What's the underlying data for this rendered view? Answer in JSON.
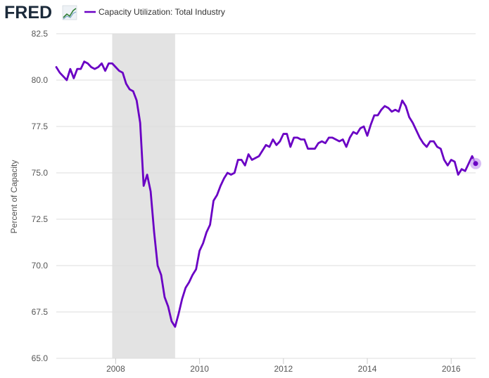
{
  "header": {
    "brand": "FRED",
    "logo_icon": "fred-graph-icon"
  },
  "chart_data": {
    "type": "line",
    "title": "",
    "xlabel": "",
    "ylabel": "Percent of Capacity",
    "legend": {
      "position": "top-left",
      "entries": [
        "Capacity Utilization: Total Industry"
      ]
    },
    "ylim": [
      65.0,
      82.5
    ],
    "xlim": [
      "2006-08",
      "2016-08"
    ],
    "y_ticks": [
      "65.0",
      "67.5",
      "70.0",
      "72.5",
      "75.0",
      "77.5",
      "80.0",
      "82.5"
    ],
    "x_ticks": [
      "2008",
      "2010",
      "2012",
      "2014",
      "2016"
    ],
    "grid": "horizontal",
    "colors": {
      "series": "#6a00c4",
      "recession_band": "#e3e3e3",
      "grid": "#dddddd",
      "last_point_halo": "#c9a6f0"
    },
    "recession": {
      "start": "2007-12",
      "end": "2009-06"
    },
    "series": [
      {
        "name": "Capacity Utilization: Total Industry",
        "x": [
          "2006-08",
          "2006-09",
          "2006-10",
          "2006-11",
          "2006-12",
          "2007-01",
          "2007-02",
          "2007-03",
          "2007-04",
          "2007-05",
          "2007-06",
          "2007-07",
          "2007-08",
          "2007-09",
          "2007-10",
          "2007-11",
          "2007-12",
          "2008-01",
          "2008-02",
          "2008-03",
          "2008-04",
          "2008-05",
          "2008-06",
          "2008-07",
          "2008-08",
          "2008-09",
          "2008-10",
          "2008-11",
          "2008-12",
          "2009-01",
          "2009-02",
          "2009-03",
          "2009-04",
          "2009-05",
          "2009-06",
          "2009-07",
          "2009-08",
          "2009-09",
          "2009-10",
          "2009-11",
          "2009-12",
          "2010-01",
          "2010-02",
          "2010-03",
          "2010-04",
          "2010-05",
          "2010-06",
          "2010-07",
          "2010-08",
          "2010-09",
          "2010-10",
          "2010-11",
          "2010-12",
          "2011-01",
          "2011-02",
          "2011-03",
          "2011-04",
          "2011-05",
          "2011-06",
          "2011-07",
          "2011-08",
          "2011-09",
          "2011-10",
          "2011-11",
          "2011-12",
          "2012-01",
          "2012-02",
          "2012-03",
          "2012-04",
          "2012-05",
          "2012-06",
          "2012-07",
          "2012-08",
          "2012-09",
          "2012-10",
          "2012-11",
          "2012-12",
          "2013-01",
          "2013-02",
          "2013-03",
          "2013-04",
          "2013-05",
          "2013-06",
          "2013-07",
          "2013-08",
          "2013-09",
          "2013-10",
          "2013-11",
          "2013-12",
          "2014-01",
          "2014-02",
          "2014-03",
          "2014-04",
          "2014-05",
          "2014-06",
          "2014-07",
          "2014-08",
          "2014-09",
          "2014-10",
          "2014-11",
          "2014-12",
          "2015-01",
          "2015-02",
          "2015-03",
          "2015-04",
          "2015-05",
          "2015-06",
          "2015-07",
          "2015-08",
          "2015-09",
          "2015-10",
          "2015-11",
          "2015-12",
          "2016-01",
          "2016-02",
          "2016-03",
          "2016-04",
          "2016-05",
          "2016-06",
          "2016-07",
          "2016-08"
        ],
        "values": [
          80.7,
          80.4,
          80.2,
          80.0,
          80.6,
          80.1,
          80.6,
          80.6,
          81.0,
          80.9,
          80.7,
          80.6,
          80.7,
          80.9,
          80.5,
          80.9,
          80.9,
          80.7,
          80.5,
          80.4,
          79.8,
          79.5,
          79.4,
          78.9,
          77.7,
          74.3,
          74.9,
          74.0,
          71.8,
          70.0,
          69.5,
          68.3,
          67.8,
          67.0,
          66.7,
          67.4,
          68.2,
          68.8,
          69.1,
          69.5,
          69.8,
          70.8,
          71.2,
          71.8,
          72.2,
          73.5,
          73.8,
          74.3,
          74.7,
          75.0,
          74.9,
          75.0,
          75.7,
          75.7,
          75.4,
          76.0,
          75.7,
          75.8,
          75.9,
          76.2,
          76.5,
          76.4,
          76.8,
          76.5,
          76.7,
          77.1,
          77.1,
          76.4,
          76.9,
          76.9,
          76.8,
          76.8,
          76.3,
          76.3,
          76.3,
          76.6,
          76.7,
          76.6,
          76.9,
          76.9,
          76.8,
          76.7,
          76.8,
          76.4,
          76.9,
          77.2,
          77.1,
          77.4,
          77.5,
          77.0,
          77.6,
          78.1,
          78.1,
          78.4,
          78.6,
          78.5,
          78.3,
          78.4,
          78.3,
          78.9,
          78.6,
          78.0,
          77.7,
          77.3,
          76.9,
          76.6,
          76.4,
          76.7,
          76.7,
          76.4,
          76.3,
          75.7,
          75.4,
          75.7,
          75.6,
          74.9,
          75.2,
          75.1,
          75.5,
          75.9,
          75.5
        ]
      }
    ]
  }
}
